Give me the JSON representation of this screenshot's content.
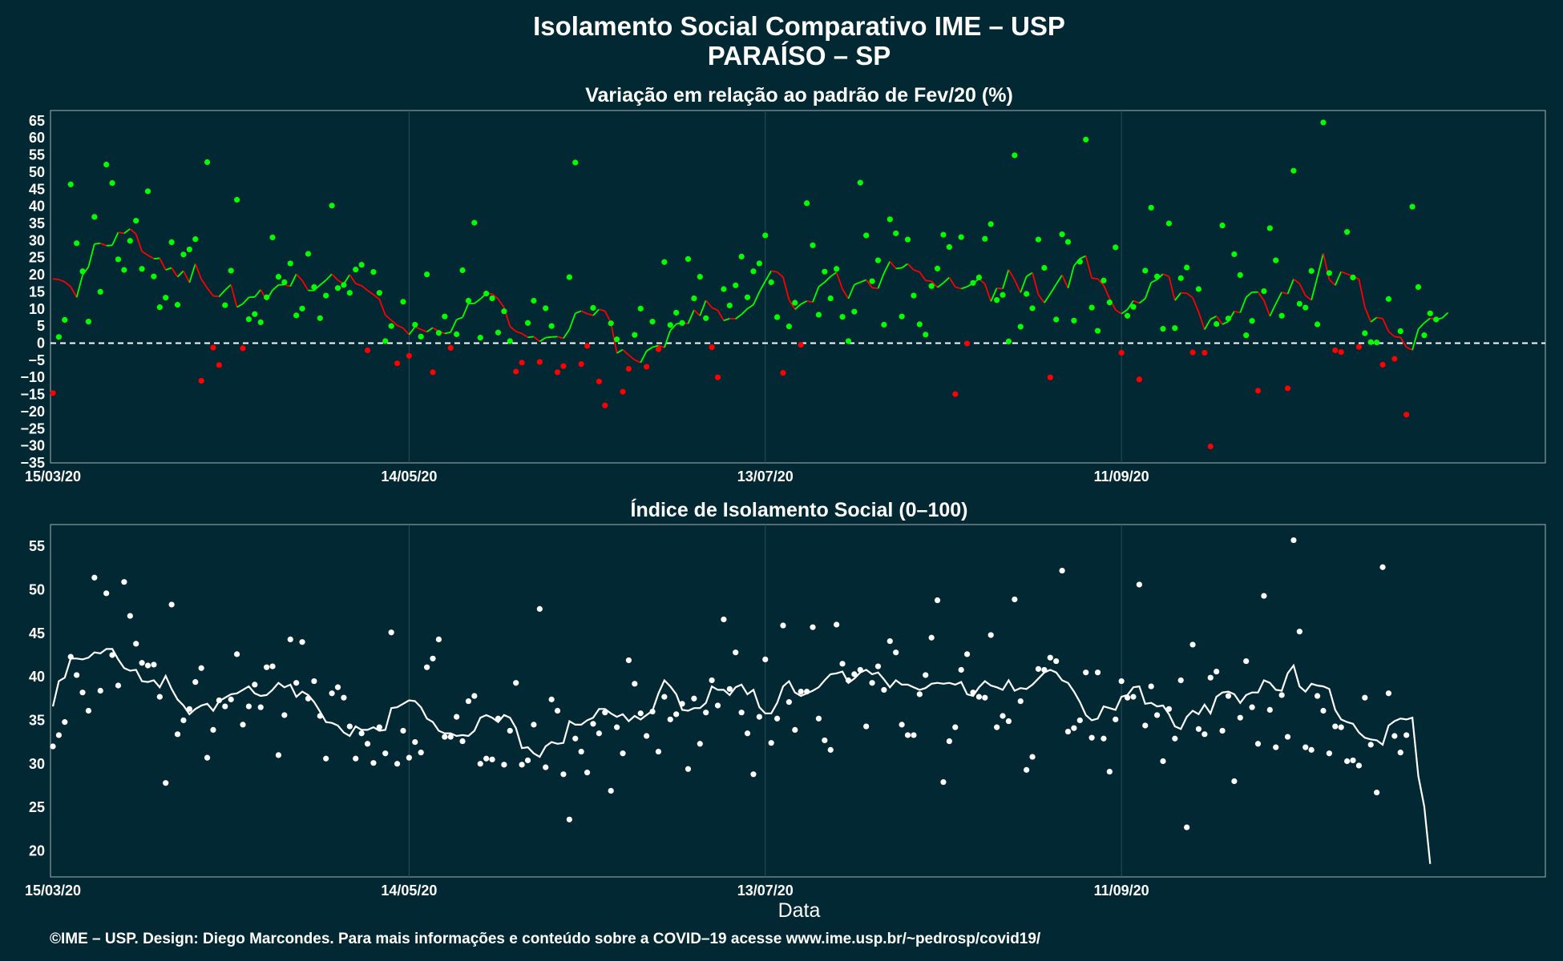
{
  "page": {
    "title_line1": "Isolamento Social Comparativo IME – USP",
    "title_line2": "PARAÍSO – SP",
    "xlabel": "Data",
    "footer": "©IME – USP. Design: Diego Marcondes. Para mais informações e conteúdo sobre a COVID–19 acesse www.ime.usp.br/~pedrosp/covid19/"
  },
  "colors": {
    "background": "#022833",
    "grid": "#294e58",
    "frame": "#8a9aa0",
    "positive": "#00ff00",
    "negative": "#ff0000",
    "index": "#ffffff"
  },
  "chart_data": [
    {
      "type": "scatter",
      "title": "Variação em relação ao padrão de Fev/20 (%)",
      "x_axis": {
        "type": "date",
        "start": "2020-03-15",
        "end": "2020-11-21",
        "ticks": [
          "15/03/20",
          "14/05/20",
          "13/07/20",
          "11/09/20"
        ]
      },
      "y_axis": {
        "range": [
          -35,
          68
        ],
        "ticks": [
          65,
          60,
          55,
          50,
          45,
          40,
          35,
          30,
          25,
          20,
          15,
          10,
          5,
          0,
          -5,
          -10,
          -15,
          -20,
          -25,
          -30,
          -35
        ]
      },
      "reference_line": 0,
      "series": [
        {
          "kind": "points",
          "values": [
            -14.6,
            1.8,
            6.8,
            46.4,
            29.2,
            21.0,
            6.3,
            36.9,
            15.0,
            52.2,
            46.8,
            24.5,
            21.4,
            29.9,
            35.8,
            21.7,
            44.4,
            19.5,
            10.5,
            13.3,
            29.5,
            11.2,
            25.9,
            27.4,
            30.4,
            -11.0,
            52.9,
            -1.3,
            -6.4,
            11.1,
            21.2,
            41.9,
            -1.5,
            7.0,
            8.5,
            6.1,
            13.4,
            30.9,
            19.4,
            17.8,
            23.3,
            8.1,
            10.1,
            26.1,
            16.4,
            7.3,
            13.9,
            40.2,
            16.1,
            17.0,
            14.7,
            21.5,
            22.9,
            -2.1,
            20.8,
            14.7,
            0.6,
            5.0,
            -5.9,
            12.1,
            -3.7,
            5.4,
            1.9,
            20.1,
            -8.5,
            3.0,
            7.8,
            -1.4,
            2.6,
            21.3,
            12.4,
            35.2,
            1.6,
            14.5,
            13.1,
            3.1,
            9.3,
            0.6,
            -8.3,
            -5.7,
            5.9,
            12.4,
            -5.5,
            10.2,
            5.0,
            -8.5,
            -6.7,
            19.3,
            52.8,
            -6.1,
            -0.8,
            10.3,
            -11.2,
            -18.2,
            5.8,
            1.1,
            -14.2,
            -7.5,
            2.4,
            10.1,
            -6.9,
            6.3,
            -1.8,
            23.7,
            5.3,
            8.9,
            5.9,
            24.6,
            13.1,
            19.4,
            7.3,
            -1.2,
            -10.0,
            15.8,
            11.0,
            16.9,
            25.3,
            13.4,
            21.0,
            23.3,
            31.5,
            17.8,
            7.6,
            -8.7,
            4.9,
            11.8,
            -0.5,
            40.9,
            28.6,
            8.3,
            20.9,
            13.1,
            21.7,
            7.7,
            0.6,
            9.2,
            46.9,
            31.5,
            18.1,
            24.2,
            5.4,
            36.2,
            32.1,
            7.8,
            30.3,
            13.9,
            5.5,
            2.5,
            16.7,
            21.8,
            31.7,
            28.1,
            -14.9,
            31.0,
            -0.1,
            17.6,
            19.2,
            30.5,
            34.8,
            12.6,
            14.1,
            0.5,
            54.9,
            4.8,
            14.4,
            10.2,
            30.3,
            22.0,
            -10.0,
            6.9,
            31.8,
            29.6,
            6.6,
            23.8,
            59.5,
            10.4,
            3.6,
            18.3,
            11.9,
            28.0,
            -2.8,
            8.0,
            10.6,
            -10.6,
            21.2,
            39.6,
            19.5,
            4.2,
            35.0,
            4.4,
            19.0,
            22.1,
            -2.7,
            15.8,
            -2.8,
            -30.2,
            5.6,
            34.4,
            7.2,
            26.0,
            19.9,
            2.3,
            6.5,
            -13.9,
            15.2,
            33.6,
            24.2,
            8.0,
            -13.2,
            50.4,
            11.5,
            10.4,
            21.1,
            5.5,
            64.5,
            20.5,
            -2.1,
            -2.6,
            32.5,
            19.2,
            -1.1,
            2.9,
            0.3,
            0.2,
            -6.3,
            12.9,
            -4.6,
            3.5,
            -20.9,
            39.9,
            16.4,
            2.3,
            8.7,
            6.9
          ]
        },
        {
          "kind": "moving_average",
          "values": [
            18.8,
            18.6,
            17.9,
            16.5,
            13.4,
            19.9,
            22.3,
            29.0,
            29.2,
            28.5,
            28.6,
            32.4,
            32.1,
            33.4,
            31.9,
            26.8,
            25.7,
            24.7,
            24.8,
            21.4,
            22.0,
            19.4,
            21.1,
            17.7,
            23.2,
            18.7,
            16.1,
            13.8,
            13.6,
            15.5,
            17.1,
            10.5,
            11.5,
            13.4,
            13.5,
            15.6,
            12.6,
            15.5,
            17.0,
            17.1,
            16.6,
            20.2,
            18.3,
            15.4,
            15.4,
            17.0,
            18.4,
            20.2,
            18.4,
            17.3,
            20.0,
            17.4,
            16.8,
            15.4,
            14.2,
            12.8,
            8.2,
            6.7,
            5.2,
            4.4,
            2.5,
            4.8,
            4.0,
            3.3,
            4.5,
            3.5,
            2.8,
            3.2,
            6.9,
            7.5,
            11.6,
            11.6,
            12.9,
            14.5,
            14.4,
            12.9,
            10.4,
            4.9,
            3.4,
            2.8,
            1.7,
            1.9,
            0.5,
            1.6,
            1.8,
            1.9,
            1.4,
            4.0,
            8.7,
            9.4,
            8.6,
            8.1,
            9.9,
            9.4,
            5.9,
            -2.9,
            -1.9,
            -3.5,
            -4.9,
            -5.7,
            -2.3,
            -1.2,
            -0.7,
            -1.3,
            3.7,
            5.6,
            5.9,
            5.7,
            9.7,
            8.0,
            12.5,
            10.4,
            9.6,
            6.6,
            7.2,
            7.1,
            8.4,
            10.1,
            11.2,
            15.0,
            18.1,
            21.1,
            20.8,
            19.3,
            12.7,
            9.9,
            11.4,
            12.3,
            12.0,
            16.5,
            17.8,
            19.5,
            20.7,
            15.8,
            13.0,
            17.1,
            17.8,
            18.5,
            16.2,
            16.0,
            20.5,
            23.9,
            21.8,
            22.0,
            23.2,
            21.4,
            20.8,
            18.3,
            18.1,
            16.3,
            17.6,
            19.2,
            16.4,
            15.9,
            16.5,
            17.5,
            18.8,
            17.3,
            12.2,
            16.1,
            15.9,
            21.5,
            18.5,
            14.8,
            19.5,
            20.6,
            14.2,
            11.8,
            14.4,
            17.2,
            19.9,
            16.1,
            22.6,
            24.7,
            25.5,
            19.0,
            18.8,
            16.9,
            13.0,
            9.7,
            8.6,
            9.8,
            12.4,
            11.7,
            13.0,
            17.7,
            18.6,
            20.2,
            19.5,
            12.5,
            14.7,
            14.6,
            13.3,
            9.1,
            4.0,
            7.0,
            7.9,
            5.5,
            6.3,
            9.3,
            8.9,
            13.4,
            14.9,
            14.9,
            12.5,
            7.9,
            11.5,
            14.9,
            14.4,
            18.7,
            17.4,
            13.9,
            12.6,
            19.3,
            26.2,
            18.6,
            16.9,
            20.9,
            20.2,
            19.5,
            18.7,
            10.5,
            6.2,
            7.5,
            7.2,
            3.4,
            1.9,
            1.7,
            -1.2,
            -2.0,
            4.1,
            5.9,
            7.3,
            6.9,
            7.3,
            8.9
          ]
        }
      ]
    },
    {
      "type": "scatter",
      "title": "Índice de Isolamento Social (0–100)",
      "x_axis": {
        "type": "date",
        "start": "2020-03-15",
        "end": "2020-11-21",
        "ticks": [
          "15/03/20",
          "14/05/20",
          "13/07/20",
          "11/09/20"
        ]
      },
      "y_axis": {
        "range": [
          17,
          57.5
        ],
        "ticks": [
          55,
          50,
          45,
          40,
          35,
          30,
          25,
          20
        ]
      },
      "series": [
        {
          "kind": "points",
          "values": [
            32.0,
            33.3,
            34.8,
            42.3,
            40.2,
            38.2,
            36.1,
            51.4,
            38.4,
            49.6,
            42.5,
            39.0,
            50.9,
            47.0,
            43.8,
            41.6,
            41.3,
            41.4,
            37.7,
            27.8,
            48.3,
            33.4,
            35.0,
            36.3,
            39.4,
            41.0,
            30.7,
            33.9,
            37.3,
            36.6,
            37.4,
            42.6,
            34.5,
            36.6,
            39.1,
            36.5,
            41.1,
            41.2,
            31.0,
            35.6,
            44.3,
            39.3,
            44.0,
            37.5,
            39.5,
            35.5,
            30.6,
            38.1,
            38.8,
            37.6,
            34.3,
            30.6,
            33.5,
            32.3,
            30.1,
            34.2,
            31.2,
            45.1,
            30.0,
            33.8,
            30.7,
            32.5,
            31.3,
            41.1,
            42.1,
            44.3,
            33.1,
            33.1,
            35.4,
            32.6,
            37.2,
            37.8,
            30.0,
            30.6,
            30.5,
            35.2,
            29.9,
            33.8,
            39.3,
            29.9,
            30.4,
            34.5,
            47.8,
            29.6,
            37.4,
            36.1,
            28.8,
            23.6,
            32.9,
            31.4,
            29.0,
            34.6,
            33.5,
            35.9,
            26.9,
            34.2,
            31.2,
            41.9,
            39.2,
            35.8,
            33.2,
            36.0,
            31.4,
            37.7,
            35.1,
            35.7,
            36.9,
            29.4,
            37.5,
            32.3,
            35.9,
            39.6,
            36.7,
            46.6,
            38.6,
            42.8,
            35.9,
            33.5,
            28.8,
            35.4,
            42.0,
            32.4,
            35.2,
            45.9,
            37.1,
            33.9,
            38.3,
            38.3,
            45.7,
            35.2,
            32.7,
            31.6,
            46.0,
            41.5,
            39.6,
            40.3,
            40.8,
            34.3,
            39.3,
            41.2,
            38.5,
            44.1,
            42.8,
            34.5,
            33.3,
            33.3,
            38.0,
            40.2,
            44.5,
            48.8,
            27.9,
            32.6,
            34.2,
            40.8,
            42.6,
            38.2,
            37.7,
            37.6,
            44.8,
            34.2,
            35.5,
            34.9,
            48.9,
            37.2,
            29.3,
            30.8,
            40.9,
            40.8,
            42.2,
            41.8,
            52.2,
            33.7,
            34.1,
            35.0,
            40.5,
            33.0,
            40.5,
            32.9,
            29.1,
            35.1,
            39.5,
            37.6,
            37.7,
            50.6,
            34.4,
            38.9,
            35.6,
            30.3,
            36.3,
            32.9,
            39.6,
            22.7,
            43.7,
            34.0,
            33.4,
            39.9,
            40.6,
            33.8,
            37.8,
            28.0,
            35.3,
            41.8,
            36.5,
            32.3,
            49.3,
            36.2,
            31.9,
            37.9,
            33.1,
            55.7,
            45.2,
            31.9,
            31.6,
            37.8,
            36.1,
            31.2,
            34.3,
            34.2,
            30.3,
            30.4,
            29.8,
            37.6,
            32.2,
            26.7,
            52.6,
            38.1,
            33.2,
            31.3,
            33.3
          ]
        },
        {
          "kind": "moving_average",
          "values": [
            36.6,
            39.5,
            39.9,
            42.1,
            42.1,
            42.0,
            42.2,
            42.8,
            42.7,
            43.2,
            43.2,
            42.0,
            41.0,
            40.7,
            40.8,
            39.5,
            39.4,
            39.6,
            38.8,
            40.1,
            38.6,
            37.4,
            36.7,
            35.7,
            36.3,
            36.7,
            36.9,
            36.1,
            37.2,
            37.6,
            38.0,
            38.1,
            38.5,
            38.9,
            38.1,
            37.8,
            37.9,
            38.5,
            39.3,
            38.8,
            39.1,
            37.7,
            38.3,
            37.9,
            37.1,
            36.0,
            34.8,
            34.7,
            34.4,
            33.6,
            33.2,
            34.3,
            33.9,
            33.9,
            34.2,
            33.8,
            33.9,
            36.4,
            36.5,
            36.9,
            37.3,
            37.2,
            36.5,
            35.2,
            34.8,
            33.8,
            33.5,
            33.5,
            33.2,
            33.3,
            33.2,
            33.8,
            35.3,
            35.6,
            35.3,
            34.8,
            35.6,
            35.3,
            34.1,
            31.8,
            31.9,
            31.2,
            30.8,
            32.0,
            32.5,
            32.3,
            32.4,
            34.9,
            34.5,
            34.5,
            35.0,
            35.3,
            36.3,
            36.3,
            35.8,
            35.4,
            35.7,
            34.9,
            35.5,
            35.1,
            35.6,
            36.1,
            38.1,
            39.6,
            38.9,
            38.0,
            36.2,
            36.1,
            36.4,
            36.4,
            37.0,
            38.9,
            38.5,
            38.5,
            37.9,
            38.8,
            39.1,
            38.0,
            38.5,
            36.5,
            35.8,
            35.8,
            37.0,
            38.9,
            39.5,
            38.2,
            37.8,
            38.1,
            38.4,
            38.8,
            39.6,
            40.3,
            40.4,
            40.6,
            39.3,
            39.8,
            40.5,
            40.8,
            40.3,
            40.5,
            39.7,
            38.8,
            39.6,
            39.1,
            39.1,
            38.8,
            38.5,
            38.7,
            39.2,
            39.3,
            39.2,
            39.3,
            39.1,
            39.4,
            38.0,
            37.8,
            38.8,
            39.5,
            39.0,
            38.8,
            38.5,
            39.6,
            38.4,
            38.7,
            38.6,
            39.1,
            39.8,
            40.5,
            40.8,
            40.5,
            39.6,
            39.3,
            38.3,
            37.1,
            35.6,
            35.0,
            35.2,
            36.6,
            36.4,
            36.2,
            37.7,
            37.9,
            38.8,
            38.9,
            36.9,
            37.0,
            36.6,
            36.7,
            35.7,
            34.3,
            34.0,
            35.4,
            36.1,
            35.7,
            36.8,
            35.8,
            37.7,
            38.2,
            38.3,
            38.0,
            37.0,
            37.9,
            38.2,
            38.2,
            39.6,
            39.3,
            38.5,
            38.4,
            40.4,
            41.3,
            38.9,
            38.3,
            39.2,
            39.0,
            38.9,
            38.6,
            36.2,
            35.1,
            34.8,
            34.6,
            33.6,
            33.0,
            32.8,
            32.7,
            32.2,
            34.4,
            34.9,
            35.2,
            35.1,
            35.3,
            28.6,
            25.1,
            18.5
          ]
        }
      ]
    }
  ]
}
